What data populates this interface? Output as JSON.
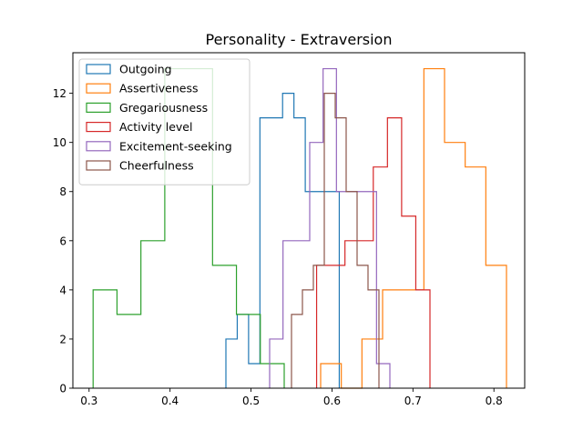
{
  "chart_data": {
    "type": "histogram",
    "title": "Personality - Extraversion",
    "xlabel": "",
    "ylabel": "",
    "xlim": [
      0.28,
      0.838
    ],
    "ylim": [
      0,
      13.65
    ],
    "x_ticks": [
      0.3,
      0.4,
      0.5,
      0.6,
      0.7,
      0.8
    ],
    "x_tick_labels": [
      "0.3",
      "0.4",
      "0.5",
      "0.6",
      "0.7",
      "0.8"
    ],
    "y_ticks": [
      0,
      2,
      4,
      6,
      8,
      10,
      12
    ],
    "y_tick_labels": [
      "0",
      "2",
      "4",
      "6",
      "8",
      "10",
      "12"
    ],
    "grid": false,
    "legend_position": "upper-left",
    "histtype": "step",
    "series": [
      {
        "name": "Outgoing",
        "color": "#1f77b4",
        "bin_edges": [
          0.469,
          0.483,
          0.497,
          0.511,
          0.525,
          0.539,
          0.553,
          0.567,
          0.581,
          0.595,
          0.609
        ],
        "counts": [
          2,
          3,
          1,
          11,
          11,
          12,
          11,
          8,
          8,
          8
        ]
      },
      {
        "name": "Assertiveness",
        "color": "#ff7f0e",
        "bin_edges": [
          0.586,
          0.6115,
          0.637,
          0.6625,
          0.688,
          0.7135,
          0.739,
          0.7645,
          0.79,
          0.8155
        ],
        "counts": [
          1,
          0,
          2,
          4,
          4,
          13,
          10,
          9,
          5
        ]
      },
      {
        "name": "Gregariousness",
        "color": "#2ca02c",
        "bin_edges": [
          0.305,
          0.3345,
          0.364,
          0.3935,
          0.423,
          0.4525,
          0.482,
          0.5115,
          0.541
        ],
        "counts": [
          4,
          3,
          6,
          13,
          13,
          5,
          3,
          1
        ]
      },
      {
        "name": "Activity level",
        "color": "#d62728",
        "bin_edges": [
          0.581,
          0.5985,
          0.616,
          0.6335,
          0.651,
          0.6685,
          0.686,
          0.7035,
          0.721
        ],
        "counts": [
          5,
          5,
          6,
          6,
          9,
          11,
          7,
          4
        ]
      },
      {
        "name": "Excitement-seeking",
        "color": "#9467bd",
        "bin_edges": [
          0.523,
          0.5395,
          0.556,
          0.5725,
          0.589,
          0.6055,
          0.622,
          0.6385,
          0.655,
          0.6715
        ],
        "counts": [
          2,
          6,
          6,
          10,
          13,
          8,
          8,
          8,
          1
        ]
      },
      {
        "name": "Cheerfulness",
        "color": "#8c564b",
        "bin_edges": [
          0.55,
          0.5635,
          0.577,
          0.5905,
          0.604,
          0.6175,
          0.631,
          0.6445,
          0.658
        ],
        "counts": [
          3,
          4,
          5,
          12,
          11,
          8,
          5,
          4
        ]
      }
    ]
  }
}
